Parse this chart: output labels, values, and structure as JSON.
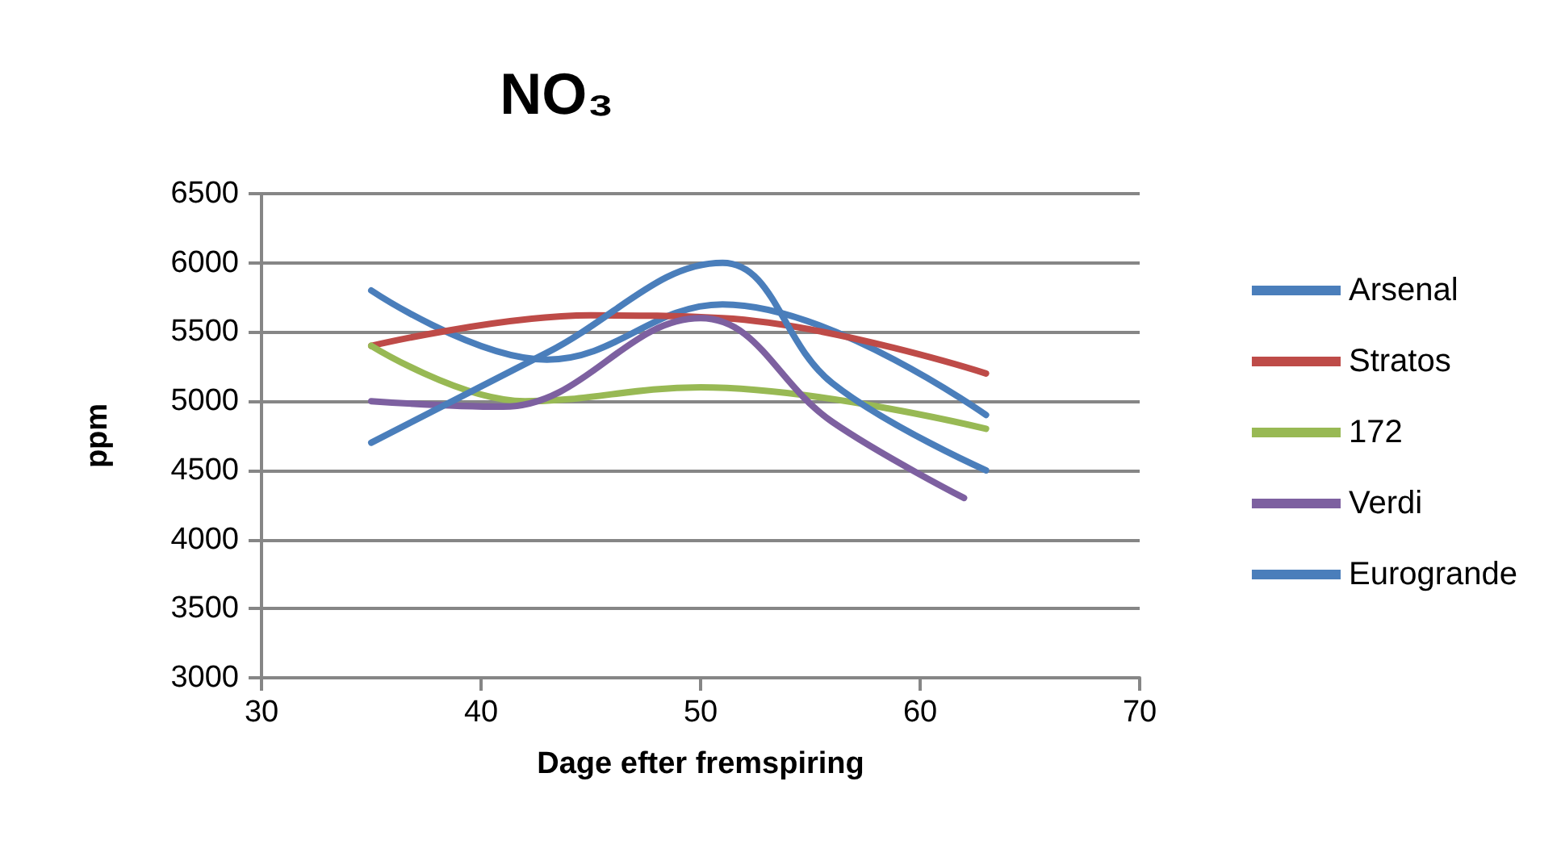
{
  "chart_data": {
    "type": "line",
    "title": "NO₃",
    "xlabel": "Dage efter fremspiring",
    "ylabel": "ppm",
    "xlim": [
      30,
      70
    ],
    "xticks": [
      30,
      40,
      50,
      60,
      70
    ],
    "ylim": [
      3000,
      6500
    ],
    "yticks": [
      3000,
      3500,
      4000,
      4500,
      5000,
      5500,
      6000,
      6500
    ],
    "grid": "y",
    "legend": "right",
    "marker": "none",
    "line_style": "solid",
    "series": [
      {
        "name": "Arsenal",
        "color": "#4a7ebb",
        "x": [
          35,
          43,
          51,
          63
        ],
        "values": [
          5800,
          5300,
          5700,
          4900
        ]
      },
      {
        "name": "Stratos",
        "color": "#be4b48",
        "x": [
          35,
          45,
          51,
          63
        ],
        "values": [
          5400,
          5620,
          5600,
          5200
        ]
      },
      {
        "name": "172",
        "color": "#98b954",
        "x": [
          35,
          42,
          50,
          63
        ],
        "values": [
          5400,
          5000,
          5100,
          4800
        ]
      },
      {
        "name": "Verdi",
        "color": "#7d60a0",
        "x": [
          35,
          41,
          50,
          56,
          62
        ],
        "values": [
          5000,
          4960,
          5600,
          4850,
          4300
        ]
      },
      {
        "name": "Eurogrande",
        "color": "#4a7ebb",
        "x": [
          35,
          43,
          51,
          56,
          63
        ],
        "values": [
          4700,
          5350,
          6000,
          5130,
          4500
        ]
      }
    ]
  }
}
